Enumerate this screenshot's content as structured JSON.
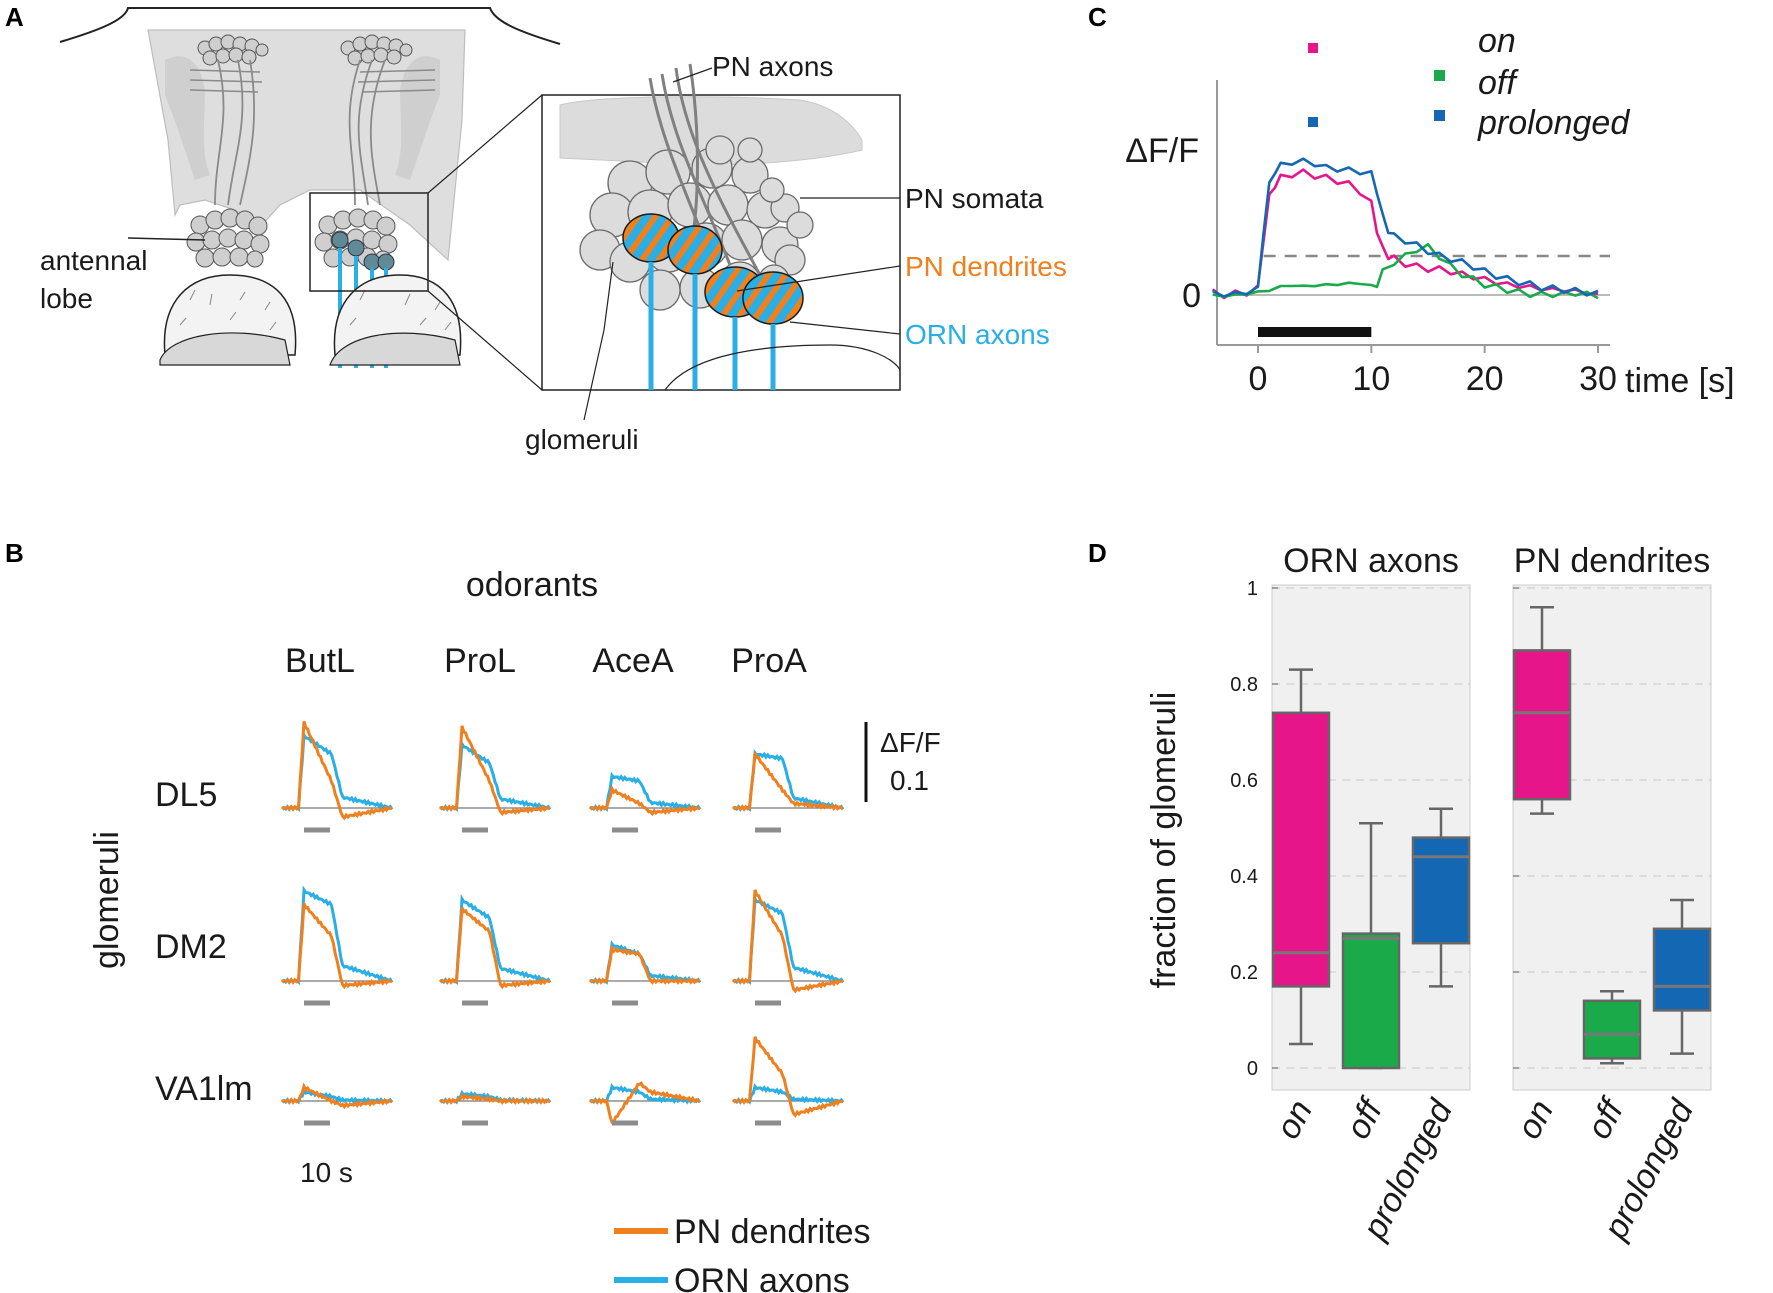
{
  "panels": {
    "A": {
      "letter": "A",
      "labels": {
        "pn_axons": "PN axons",
        "pn_somata": "PN somata",
        "pn_dendrites": "PN dendrites",
        "orn_axons": "ORN axons",
        "glomeruli": "glomeruli",
        "antennal_line1": "antennal",
        "antennal_line2": "lobe"
      }
    },
    "B": {
      "letter": "B",
      "header": "odorants",
      "row_axis_label": "glomeruli",
      "odorants": [
        "ButL",
        "ProL",
        "AceA",
        "ProA"
      ],
      "glomeruli": [
        "DL5",
        "DM2",
        "VA1lm"
      ],
      "scalebar": {
        "line1": "ΔF/F",
        "line2": "0.1"
      },
      "time_scale": "10 s",
      "legend": [
        {
          "label": "PN dendrites",
          "color": "#f07f1e"
        },
        {
          "label": "ORN axons",
          "color": "#29aee6"
        }
      ]
    },
    "C": {
      "letter": "C"
    },
    "D": {
      "letter": "D"
    }
  },
  "colors": {
    "on": "#e6158a",
    "off": "#1aaa4a",
    "prolonged": "#1467b2",
    "pn": "#f07f1e",
    "orn": "#29aee6",
    "bar": "#111111",
    "gray_bar": "#8c8c8c"
  },
  "chart_data": [
    {
      "panel": "C",
      "type": "line",
      "title": "",
      "xlabel": "time [s]",
      "ylabel": "ΔF/F",
      "xlim": [
        -5,
        30
      ],
      "xticks": [
        0,
        10,
        20,
        30
      ],
      "yticks": [
        0
      ],
      "stimulus": [
        0,
        10
      ],
      "threshold": 0.3,
      "legend": [
        "on",
        "off",
        "prolonged"
      ],
      "series": [
        {
          "name": "on",
          "color": "#e6158a",
          "x": [
            -4,
            -3,
            -2,
            -1,
            0,
            0.5,
            1,
            1.5,
            2,
            3,
            4,
            5,
            6,
            7,
            8,
            9,
            10,
            10.5,
            11,
            11.5,
            12,
            13,
            14,
            15,
            16,
            17,
            18,
            19,
            20,
            21,
            22,
            23,
            24,
            25,
            26,
            27,
            28,
            29,
            30
          ],
          "y": [
            0.02,
            0.0,
            0.01,
            0.02,
            0.05,
            0.45,
            0.75,
            0.85,
            0.9,
            0.93,
            0.94,
            0.92,
            0.9,
            0.88,
            0.85,
            0.8,
            0.7,
            0.5,
            0.35,
            0.3,
            0.28,
            0.24,
            0.22,
            0.2,
            0.2,
            0.18,
            0.16,
            0.14,
            0.12,
            0.1,
            0.08,
            0.07,
            0.06,
            0.05,
            0.04,
            0.04,
            0.03,
            0.02,
            0.0
          ]
        },
        {
          "name": "off",
          "color": "#1aaa4a",
          "x": [
            -4,
            -3,
            -2,
            -1,
            0,
            1,
            2,
            3,
            4,
            5,
            6,
            7,
            8,
            9,
            10,
            10.5,
            11,
            12,
            13,
            14,
            15,
            16,
            17,
            18,
            19,
            20,
            21,
            22,
            23,
            24,
            25,
            26,
            27,
            28,
            29,
            30
          ],
          "y": [
            0.0,
            -0.01,
            0.0,
            0.01,
            0.02,
            0.04,
            0.06,
            0.08,
            0.06,
            0.08,
            0.07,
            0.09,
            0.08,
            0.1,
            0.06,
            0.08,
            0.18,
            0.25,
            0.3,
            0.35,
            0.37,
            0.3,
            0.22,
            0.16,
            0.12,
            0.08,
            0.06,
            0.04,
            0.02,
            0.01,
            0.0,
            0.01,
            0.0,
            0.02,
            0.0,
            0.0
          ]
        },
        {
          "name": "prolonged",
          "color": "#1467b2",
          "x": [
            -4,
            -3,
            -2,
            -1,
            0,
            0.5,
            1,
            1.5,
            2,
            3,
            4,
            5,
            6,
            7,
            8,
            9,
            10,
            10.5,
            11,
            11.5,
            12,
            13,
            14,
            15,
            16,
            17,
            18,
            19,
            20,
            21,
            22,
            23,
            24,
            25,
            26,
            27,
            28,
            29,
            30
          ],
          "y": [
            0.02,
            0.0,
            0.01,
            0.02,
            0.05,
            0.5,
            0.85,
            0.95,
            1.0,
            1.02,
            1.03,
            1.01,
            0.98,
            0.97,
            0.96,
            0.95,
            0.93,
            0.8,
            0.6,
            0.5,
            0.45,
            0.42,
            0.38,
            0.34,
            0.3,
            0.28,
            0.25,
            0.22,
            0.18,
            0.15,
            0.12,
            0.1,
            0.08,
            0.06,
            0.05,
            0.04,
            0.03,
            0.02,
            0.01
          ]
        }
      ]
    },
    {
      "panel": "D",
      "type": "box",
      "ylabel": "fraction of glomeruli",
      "ylim": [
        0,
        1
      ],
      "yticks": [
        0,
        0.2,
        0.4,
        0.6,
        0.8,
        1
      ],
      "ytick_labels": [
        "0",
        "0.2",
        "0.4",
        "0.6",
        "0.8",
        "1"
      ],
      "categories": [
        "on",
        "off",
        "prolonged"
      ],
      "groups": [
        {
          "title": "ORN axons",
          "boxes": [
            {
              "category": "on",
              "color": "#e6158a",
              "min": 0.05,
              "q1": 0.17,
              "median": 0.24,
              "q3": 0.74,
              "max": 0.83
            },
            {
              "category": "off",
              "color": "#1aaa4a",
              "min": 0.0,
              "q1": 0.0,
              "median": 0.27,
              "q3": 0.28,
              "max": 0.51
            },
            {
              "category": "prolonged",
              "color": "#1467b2",
              "min": 0.17,
              "q1": 0.26,
              "median": 0.44,
              "q3": 0.48,
              "max": 0.54
            }
          ]
        },
        {
          "title": "PN dendrites",
          "boxes": [
            {
              "category": "on",
              "color": "#e6158a",
              "min": 0.53,
              "q1": 0.56,
              "median": 0.74,
              "q3": 0.87,
              "max": 0.96
            },
            {
              "category": "off",
              "color": "#1aaa4a",
              "min": 0.01,
              "q1": 0.02,
              "median": 0.07,
              "q3": 0.14,
              "max": 0.16
            },
            {
              "category": "prolonged",
              "color": "#1467b2",
              "min": 0.03,
              "q1": 0.12,
              "median": 0.17,
              "q3": 0.29,
              "max": 0.35
            }
          ]
        }
      ]
    }
  ]
}
